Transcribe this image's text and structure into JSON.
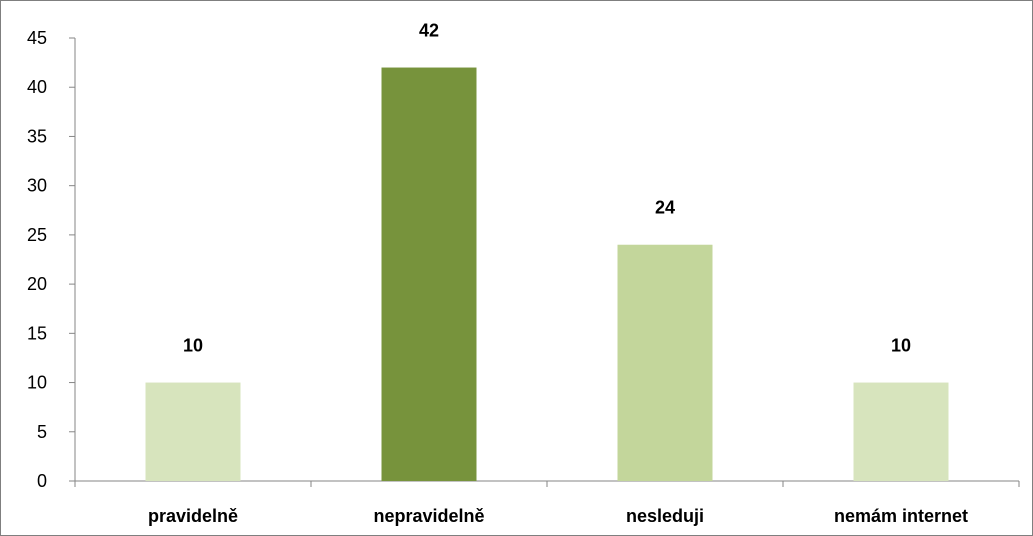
{
  "chart_data": {
    "type": "bar",
    "categories": [
      "pravidelně",
      "nepravidelně",
      "nesleduji",
      "nemám internet"
    ],
    "values": [
      10,
      42,
      24,
      10
    ],
    "bar_colors": [
      "#d7e4bd",
      "#77933c",
      "#c3d69b",
      "#d7e4bd"
    ],
    "data_labels": [
      "10",
      "42",
      "24",
      "10"
    ],
    "title": "",
    "xlabel": "",
    "ylabel": "",
    "ylim": [
      0,
      45
    ],
    "yticks": [
      0,
      5,
      10,
      15,
      20,
      25,
      30,
      35,
      40,
      45
    ],
    "grid": false,
    "legend": "none"
  }
}
